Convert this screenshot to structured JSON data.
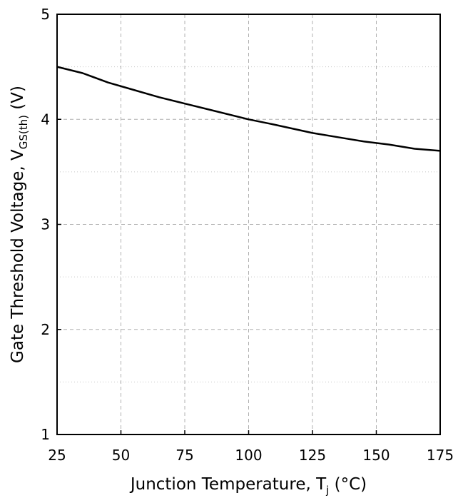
{
  "chart_data": {
    "type": "line",
    "title": "",
    "xlabel": {
      "main": "Junction Temperature, T",
      "sub": "j",
      "tail": " (°C)"
    },
    "ylabel": {
      "main": "Gate Threshold Voltage, V",
      "sub": "GS(th)",
      "tail": " (V)"
    },
    "xlim": [
      25,
      175
    ],
    "ylim": [
      1,
      5
    ],
    "xticks": [
      25,
      50,
      75,
      100,
      125,
      150,
      175
    ],
    "yticks": [
      1,
      2,
      3,
      4,
      5
    ],
    "grid": "major dashed, minor dotted",
    "series": [
      {
        "x": [
          25,
          35,
          45,
          55,
          65,
          75,
          85,
          100,
          110,
          125,
          135,
          145,
          155,
          165,
          175
        ],
        "y": [
          4.5,
          4.44,
          4.35,
          4.28,
          4.21,
          4.15,
          4.09,
          4.0,
          3.95,
          3.87,
          3.83,
          3.79,
          3.76,
          3.72,
          3.7
        ]
      }
    ]
  }
}
